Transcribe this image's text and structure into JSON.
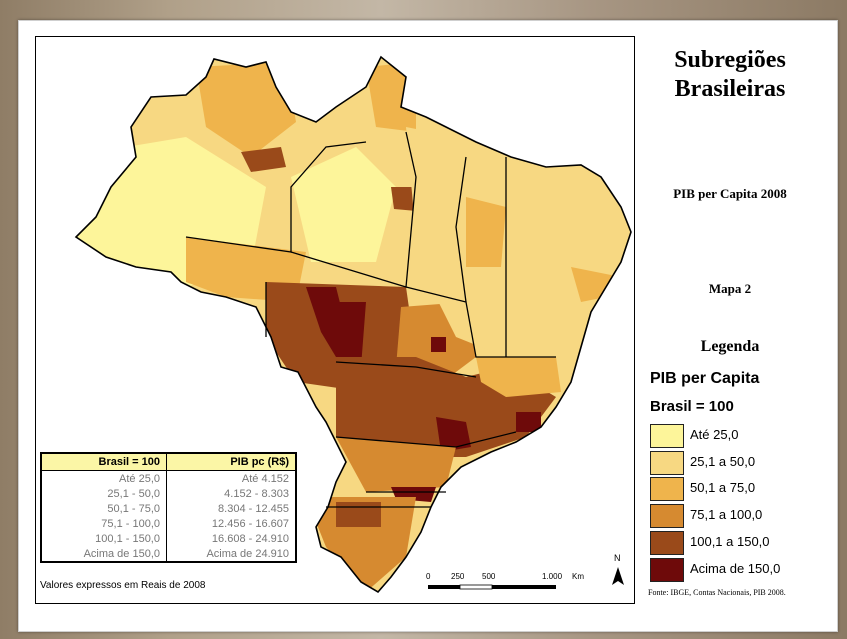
{
  "title": "Subregiões Brasileiras",
  "subtitle": "PIB per Capita 2008",
  "map_number": "Mapa 2",
  "legend": {
    "heading": "Legenda",
    "variable": "PIB per Capita",
    "base": "Brasil = 100",
    "classes": [
      {
        "label": "Até 25,0",
        "color": "#fdf59a"
      },
      {
        "label": "25,1 a 50,0",
        "color": "#f7d882"
      },
      {
        "label": "50,1 a 75,0",
        "color": "#efb44c"
      },
      {
        "label": "75,1 a 100,0",
        "color": "#d68a30"
      },
      {
        "label": "100,1 a 150,0",
        "color": "#9a4a1a"
      },
      {
        "label": "Acima de 150,0",
        "color": "#6e0a0a"
      }
    ]
  },
  "table": {
    "headers": [
      "Brasil = 100",
      "PIB pc (R$)"
    ],
    "rows": [
      [
        "Até 25,0",
        "Até 4.152"
      ],
      [
        "25,1 - 50,0",
        "4.152 - 8.303"
      ],
      [
        "50,1 - 75,0",
        "8.304 - 12.455"
      ],
      [
        "75,1 - 100,0",
        "12.456 - 16.607"
      ],
      [
        "100,1 - 150,0",
        "16.608 - 24.910"
      ],
      [
        "Acima de 150,0",
        "Acima de 24.910"
      ]
    ]
  },
  "note": "Valores expressos em Reais de 2008",
  "scale": {
    "ticks": [
      "0",
      "250",
      "500",
      "1.000"
    ],
    "unit": "Km"
  },
  "north": "N",
  "source": "Fonte: IBGE, Contas Nacionais, PIB 2008."
}
